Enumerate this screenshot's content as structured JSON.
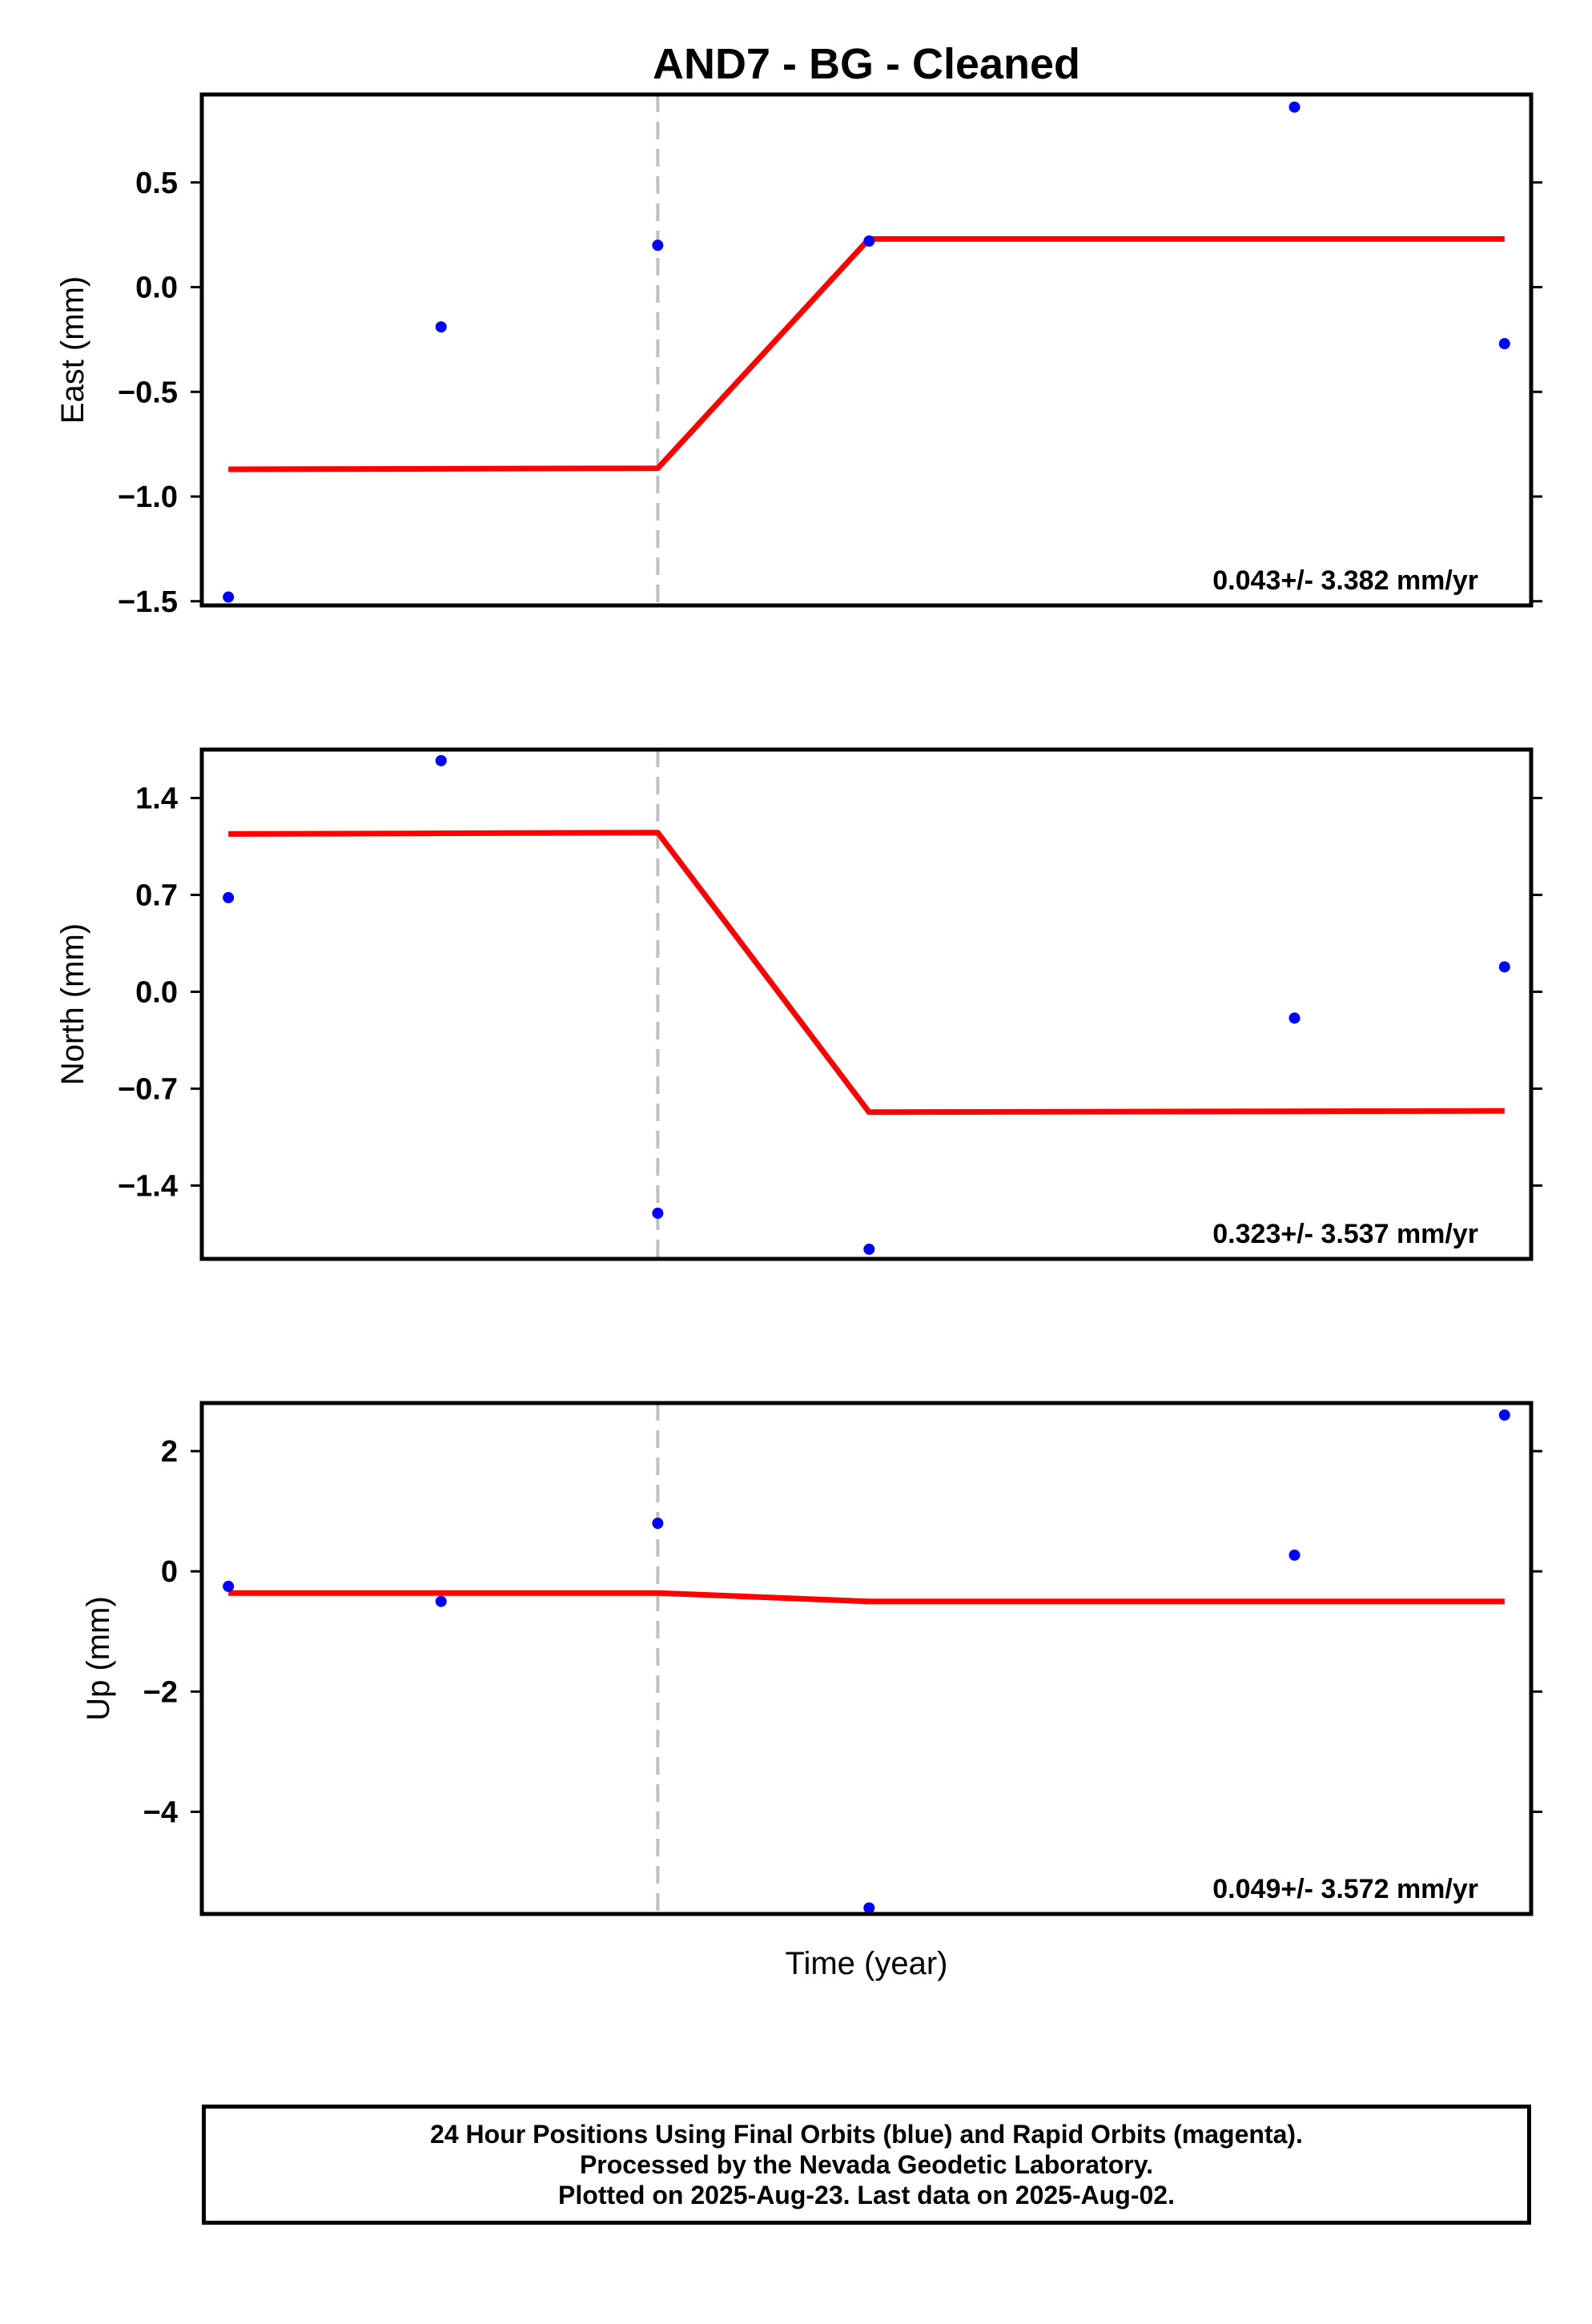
{
  "title": "AND7  - BG - Cleaned",
  "xlabel": "Time (year)",
  "colors": {
    "points": "#0000ff",
    "fit": "#ff0000",
    "event_line": "#c0c0c0",
    "frame": "#000000"
  },
  "chart_data": [
    {
      "type": "scatter",
      "component": "East",
      "ylabel": "East (mm)",
      "ylim": [
        -1.52,
        0.92
      ],
      "yticks": [
        0.5,
        0.0,
        -0.5,
        -1.0,
        -1.5
      ],
      "ytick_labels": [
        "0.5",
        "0.0",
        "−0.5",
        "−1.0",
        "−1.5"
      ],
      "points": [
        {
          "x": 0.02,
          "y": -1.48
        },
        {
          "x": 0.18,
          "y": -0.19
        },
        {
          "x": 0.343,
          "y": 0.2
        },
        {
          "x": 0.502,
          "y": 0.22
        },
        {
          "x": 0.822,
          "y": 0.86
        },
        {
          "x": 0.98,
          "y": -0.27
        }
      ],
      "fit": [
        {
          "x": 0.02,
          "y": -0.87
        },
        {
          "x": 0.343,
          "y": -0.865
        },
        {
          "x": 0.502,
          "y": 0.23
        },
        {
          "x": 0.98,
          "y": 0.23
        }
      ],
      "rate": "0.043+/- 3.382 mm/yr"
    },
    {
      "type": "scatter",
      "component": "North",
      "ylabel": "North (mm)",
      "ylim": [
        -1.93,
        1.75
      ],
      "yticks": [
        1.4,
        0.7,
        0.0,
        -0.7,
        -1.4
      ],
      "ytick_labels": [
        "1.4",
        "0.7",
        "0.0",
        "−0.7",
        "−1.4"
      ],
      "points": [
        {
          "x": 0.02,
          "y": 0.68
        },
        {
          "x": 0.18,
          "y": 1.67
        },
        {
          "x": 0.343,
          "y": -1.6
        },
        {
          "x": 0.502,
          "y": -1.86
        },
        {
          "x": 0.822,
          "y": -0.19
        },
        {
          "x": 0.98,
          "y": 0.18
        }
      ],
      "fit": [
        {
          "x": 0.02,
          "y": 1.14
        },
        {
          "x": 0.343,
          "y": 1.15
        },
        {
          "x": 0.502,
          "y": -0.87
        },
        {
          "x": 0.98,
          "y": -0.86
        }
      ],
      "rate": "0.323+/- 3.537 mm/yr"
    },
    {
      "type": "scatter",
      "component": "Up",
      "ylabel": "Up (mm)",
      "ylim": [
        -5.7,
        2.8
      ],
      "yticks": [
        2,
        0,
        -2,
        -4
      ],
      "ytick_labels": [
        "2",
        "0",
        "−2",
        "−4"
      ],
      "points": [
        {
          "x": 0.02,
          "y": -0.25
        },
        {
          "x": 0.18,
          "y": -0.5
        },
        {
          "x": 0.343,
          "y": 0.8
        },
        {
          "x": 0.502,
          "y": -5.6
        },
        {
          "x": 0.822,
          "y": 0.27
        },
        {
          "x": 0.98,
          "y": 2.6
        }
      ],
      "fit": [
        {
          "x": 0.02,
          "y": -0.36
        },
        {
          "x": 0.343,
          "y": -0.36
        },
        {
          "x": 0.502,
          "y": -0.5
        },
        {
          "x": 0.98,
          "y": -0.5
        }
      ],
      "rate": "0.049+/- 3.572 mm/yr"
    }
  ],
  "event_x": 0.343,
  "footer": {
    "line1": "24 Hour Positions Using Final Orbits (blue) and Rapid Orbits (magenta).",
    "line2": "Processed by the Nevada Geodetic Laboratory.",
    "line3": "Plotted on 2025-Aug-23. Last data on 2025-Aug-02."
  }
}
